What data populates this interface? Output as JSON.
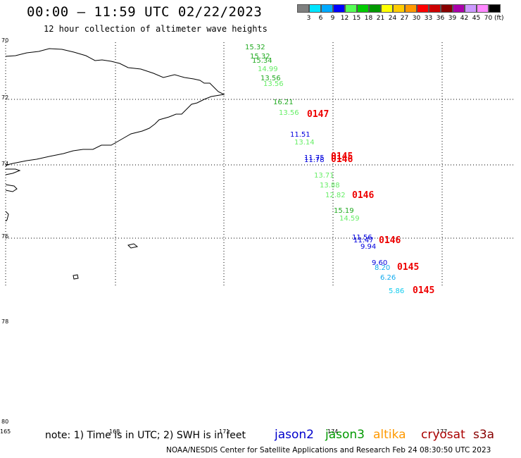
{
  "title": "00:00 – 11:59 UTC 02/22/2023",
  "subtitle": "12 hour collection of altimeter wave heights",
  "legend": {
    "colors": [
      "#7f7f7f",
      "#00e5ff",
      "#00aaff",
      "#0000ff",
      "#55ff55",
      "#00cc00",
      "#009900",
      "#ffff00",
      "#ffcc00",
      "#ff9900",
      "#ff0000",
      "#cc0000",
      "#880000",
      "#aa00aa",
      "#cc99ff",
      "#ff88ff",
      "#000000"
    ],
    "labels": [
      "3",
      "6",
      "9",
      "12",
      "15",
      "18",
      "21",
      "24",
      "27",
      "30",
      "33",
      "36",
      "39",
      "42",
      "45",
      "70"
    ],
    "unit": "(ft)"
  },
  "lat_labels": [
    "70",
    "72",
    "74",
    "76",
    "78",
    "78",
    "80"
  ],
  "lon_labels": [
    "165",
    "168",
    "171",
    "174",
    "177"
  ],
  "wave_heights": [
    {
      "v": "15.32",
      "color": "#22aa22"
    },
    {
      "v": "15.32",
      "color": "#22aa22"
    },
    {
      "v": "15.34",
      "color": "#22aa22"
    },
    {
      "v": "14.99",
      "color": "#66ee66"
    },
    {
      "v": "13.56",
      "color": "#22aa22"
    },
    {
      "v": "13.56",
      "color": "#66ee66"
    },
    {
      "v": "16.21",
      "color": "#22aa22"
    },
    {
      "v": "13.56",
      "color": "#66ee66"
    },
    {
      "v": "11.51",
      "color": "#0000dd"
    },
    {
      "v": "13.14",
      "color": "#66ee66"
    },
    {
      "v": "11.75",
      "color": "#0000dd"
    },
    {
      "v": "11.78",
      "color": "#0000dd"
    },
    {
      "v": "13.71",
      "color": "#66ee66"
    },
    {
      "v": "13.88",
      "color": "#66ee66"
    },
    {
      "v": "12.82",
      "color": "#66ee66"
    },
    {
      "v": "15.19",
      "color": "#22aa22"
    },
    {
      "v": "14.59",
      "color": "#66ee66"
    },
    {
      "v": "11.56",
      "color": "#0000dd"
    },
    {
      "v": "11.47",
      "color": "#0000dd"
    },
    {
      "v": "9.94",
      "color": "#0000dd"
    },
    {
      "v": "9.60",
      "color": "#0000dd"
    },
    {
      "v": "8.20",
      "color": "#11aaee"
    },
    {
      "v": "6.26",
      "color": "#11aaee"
    },
    {
      "v": "5.86",
      "color": "#11ccee"
    }
  ],
  "time_labels": [
    {
      "v": "0147"
    },
    {
      "v": "0145"
    },
    {
      "v": "0146"
    },
    {
      "v": "0146"
    },
    {
      "v": "0146"
    },
    {
      "v": "0145"
    },
    {
      "v": "0145"
    }
  ],
  "time_label_color": "#ee0000",
  "note": "note:  1) Time is in UTC;  2) SWH is in feet",
  "satellites": [
    {
      "name": "jason2",
      "color": "#0000cc"
    },
    {
      "name": "jason3",
      "color": "#009900"
    },
    {
      "name": "altika",
      "color": "#ff9900"
    },
    {
      "name": "cryosat",
      "color": "#aa0000"
    },
    {
      "name": "s3a",
      "color": "#880000"
    }
  ],
  "credit": "NOAA/NESDIS Center for Satellite Applications and Research    Feb 24 08:30:50 UTC 2023"
}
